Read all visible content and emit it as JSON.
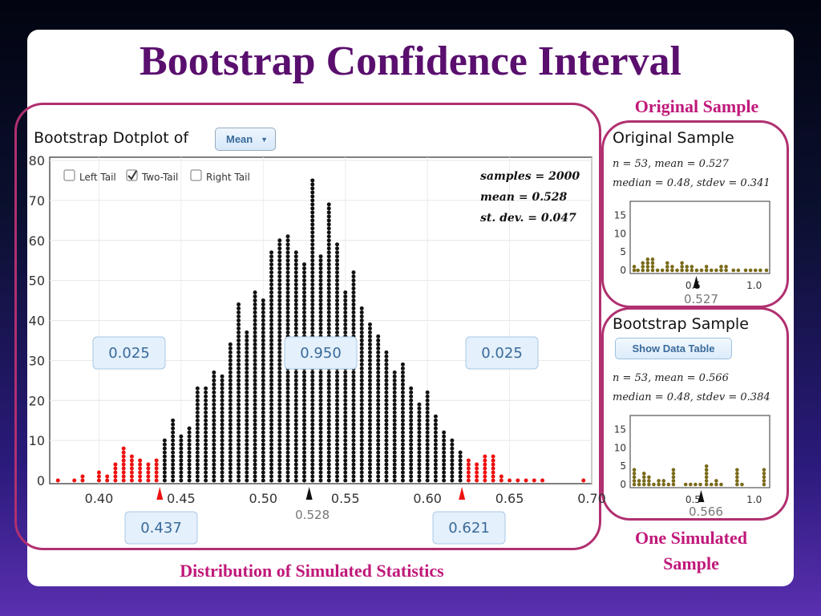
{
  "title": "Bootstrap Confidence Interval",
  "labels": {
    "original_sample": "Original Sample",
    "one_simulated_sample": "One Simulated Sample",
    "distribution": "Distribution of Simulated Statistics"
  },
  "colors": {
    "title": "#5a0f6e",
    "label": "#c0187a",
    "frame": "#b03070",
    "dots": "#111111",
    "tail_dots": "#ee1111",
    "sample_dots": "#7a6a1a"
  },
  "dotplot": {
    "heading": "Bootstrap Dotplot of",
    "statistic_select": "Mean",
    "checkboxes": [
      {
        "label": "Left Tail",
        "checked": false
      },
      {
        "label": "Two-Tail",
        "checked": true
      },
      {
        "label": "Right Tail",
        "checked": false
      }
    ],
    "stats": [
      "samples = 2000",
      "mean = 0.528",
      "st. dev. = 0.047"
    ],
    "proportion_boxes": {
      "left": "0.025",
      "middle": "0.950",
      "right": "0.025"
    },
    "bound_boxes": {
      "lower": "0.437",
      "upper": "0.621"
    },
    "center_label": "0.528"
  },
  "original_panel": {
    "heading": "Original Sample",
    "stats_line1": "n = 53, mean = 0.527",
    "stats_line2": "median = 0.48, stdev = 0.341",
    "mean_label": "0.527"
  },
  "bootstrap_panel": {
    "heading": "Bootstrap Sample",
    "button": "Show Data Table",
    "stats_line1": "n = 53, mean = 0.566",
    "stats_line2": "median = 0.48, stdev = 0.384",
    "mean_label": "0.566"
  },
  "chart_data": [
    {
      "type": "scatter",
      "subtype": "dotplot",
      "title": "Bootstrap Dotplot of Mean",
      "xlim": [
        0.37,
        0.7
      ],
      "ylim": [
        0,
        80
      ],
      "xticks": [
        0.4,
        0.45,
        0.5,
        0.55,
        0.6,
        0.65,
        0.7
      ],
      "xtick_labels": [
        "0.40",
        "0.45",
        "0.50",
        "0.55",
        "0.60",
        "0.65",
        "0.70"
      ],
      "yticks": [
        0,
        10,
        20,
        30,
        40,
        50,
        60,
        70,
        80
      ],
      "bin_width": 0.005,
      "bins": [
        {
          "x": 0.375,
          "count": 1
        },
        {
          "x": 0.385,
          "count": 1
        },
        {
          "x": 0.39,
          "count": 2
        },
        {
          "x": 0.395,
          "count": 0
        },
        {
          "x": 0.4,
          "count": 3
        },
        {
          "x": 0.405,
          "count": 2
        },
        {
          "x": 0.41,
          "count": 5
        },
        {
          "x": 0.415,
          "count": 9
        },
        {
          "x": 0.42,
          "count": 7
        },
        {
          "x": 0.425,
          "count": 6
        },
        {
          "x": 0.43,
          "count": 5
        },
        {
          "x": 0.435,
          "count": 6
        },
        {
          "x": 0.44,
          "count": 11
        },
        {
          "x": 0.445,
          "count": 16
        },
        {
          "x": 0.45,
          "count": 12
        },
        {
          "x": 0.455,
          "count": 14
        },
        {
          "x": 0.46,
          "count": 24
        },
        {
          "x": 0.465,
          "count": 24
        },
        {
          "x": 0.47,
          "count": 28
        },
        {
          "x": 0.475,
          "count": 27
        },
        {
          "x": 0.48,
          "count": 35
        },
        {
          "x": 0.485,
          "count": 45
        },
        {
          "x": 0.49,
          "count": 38
        },
        {
          "x": 0.495,
          "count": 48
        },
        {
          "x": 0.5,
          "count": 46
        },
        {
          "x": 0.505,
          "count": 58
        },
        {
          "x": 0.51,
          "count": 61
        },
        {
          "x": 0.515,
          "count": 62
        },
        {
          "x": 0.52,
          "count": 58
        },
        {
          "x": 0.525,
          "count": 55
        },
        {
          "x": 0.53,
          "count": 76
        },
        {
          "x": 0.535,
          "count": 57
        },
        {
          "x": 0.54,
          "count": 70
        },
        {
          "x": 0.545,
          "count": 60
        },
        {
          "x": 0.55,
          "count": 48
        },
        {
          "x": 0.555,
          "count": 53
        },
        {
          "x": 0.56,
          "count": 44
        },
        {
          "x": 0.565,
          "count": 40
        },
        {
          "x": 0.57,
          "count": 37
        },
        {
          "x": 0.575,
          "count": 33
        },
        {
          "x": 0.58,
          "count": 28
        },
        {
          "x": 0.585,
          "count": 30
        },
        {
          "x": 0.59,
          "count": 24
        },
        {
          "x": 0.595,
          "count": 20
        },
        {
          "x": 0.6,
          "count": 23
        },
        {
          "x": 0.605,
          "count": 17
        },
        {
          "x": 0.61,
          "count": 13
        },
        {
          "x": 0.615,
          "count": 11
        },
        {
          "x": 0.62,
          "count": 8
        },
        {
          "x": 0.625,
          "count": 6
        },
        {
          "x": 0.63,
          "count": 5
        },
        {
          "x": 0.635,
          "count": 7
        },
        {
          "x": 0.64,
          "count": 7
        },
        {
          "x": 0.645,
          "count": 2
        },
        {
          "x": 0.65,
          "count": 1
        },
        {
          "x": 0.655,
          "count": 1
        },
        {
          "x": 0.66,
          "count": 1
        },
        {
          "x": 0.665,
          "count": 1
        },
        {
          "x": 0.67,
          "count": 1
        },
        {
          "x": 0.695,
          "count": 1
        }
      ],
      "lower_cutoff": 0.437,
      "upper_cutoff": 0.621,
      "center": 0.528,
      "tail_proportions": [
        0.025,
        0.95,
        0.025
      ]
    },
    {
      "type": "scatter",
      "subtype": "dotplot",
      "title": "Original Sample",
      "xlim": [
        0,
        1.1
      ],
      "ylim": [
        0,
        18
      ],
      "xticks": [
        0.5,
        1.0
      ],
      "xtick_labels": [
        "0.5",
        "1.0"
      ],
      "yticks": [
        0,
        5,
        10,
        15
      ],
      "points": [
        {
          "x": 0.02,
          "count": 2
        },
        {
          "x": 0.05,
          "count": 1
        },
        {
          "x": 0.09,
          "count": 3
        },
        {
          "x": 0.13,
          "count": 4
        },
        {
          "x": 0.17,
          "count": 4
        },
        {
          "x": 0.21,
          "count": 1
        },
        {
          "x": 0.25,
          "count": 1
        },
        {
          "x": 0.29,
          "count": 3
        },
        {
          "x": 0.33,
          "count": 2
        },
        {
          "x": 0.37,
          "count": 1
        },
        {
          "x": 0.41,
          "count": 3
        },
        {
          "x": 0.45,
          "count": 2
        },
        {
          "x": 0.49,
          "count": 2
        },
        {
          "x": 0.53,
          "count": 1
        },
        {
          "x": 0.57,
          "count": 1
        },
        {
          "x": 0.61,
          "count": 2
        },
        {
          "x": 0.65,
          "count": 1
        },
        {
          "x": 0.69,
          "count": 1
        },
        {
          "x": 0.73,
          "count": 2
        },
        {
          "x": 0.77,
          "count": 2
        },
        {
          "x": 0.83,
          "count": 1
        },
        {
          "x": 0.87,
          "count": 1
        },
        {
          "x": 0.93,
          "count": 1
        },
        {
          "x": 0.97,
          "count": 1
        },
        {
          "x": 1.01,
          "count": 1
        },
        {
          "x": 1.05,
          "count": 1
        },
        {
          "x": 1.1,
          "count": 1
        }
      ],
      "mean": 0.527
    },
    {
      "type": "scatter",
      "subtype": "dotplot",
      "title": "Bootstrap Sample",
      "xlim": [
        0,
        1.1
      ],
      "ylim": [
        0,
        18
      ],
      "xticks": [
        0.5,
        1.0
      ],
      "xtick_labels": [
        "0.5",
        "1.0"
      ],
      "yticks": [
        0,
        5,
        10,
        15
      ],
      "points": [
        {
          "x": 0.02,
          "count": 5
        },
        {
          "x": 0.06,
          "count": 2
        },
        {
          "x": 0.1,
          "count": 4
        },
        {
          "x": 0.14,
          "count": 3
        },
        {
          "x": 0.18,
          "count": 1
        },
        {
          "x": 0.22,
          "count": 2
        },
        {
          "x": 0.26,
          "count": 2
        },
        {
          "x": 0.3,
          "count": 1
        },
        {
          "x": 0.34,
          "count": 5
        },
        {
          "x": 0.44,
          "count": 1
        },
        {
          "x": 0.48,
          "count": 1
        },
        {
          "x": 0.52,
          "count": 1
        },
        {
          "x": 0.56,
          "count": 1
        },
        {
          "x": 0.61,
          "count": 6
        },
        {
          "x": 0.65,
          "count": 1
        },
        {
          "x": 0.69,
          "count": 2
        },
        {
          "x": 0.73,
          "count": 1
        },
        {
          "x": 0.86,
          "count": 5
        },
        {
          "x": 0.9,
          "count": 1
        },
        {
          "x": 1.08,
          "count": 5
        }
      ],
      "mean": 0.566
    }
  ]
}
